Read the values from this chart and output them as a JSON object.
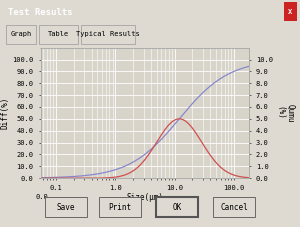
{
  "title": "Test Results",
  "tab_labels": [
    "Graph",
    "Table",
    "Typical Results"
  ],
  "xlabel": "Size(μm)",
  "ylabel_left": "Diff(%)",
  "ylabel_right": "Qumu\n(%)",
  "xtick_labels": [
    "0.0",
    "0.1",
    "1.0",
    "10.0",
    "100.0"
  ],
  "ytick_labels_left": [
    "0.0",
    "10.0",
    "20.0",
    "30.0",
    "40.0",
    "50.0",
    "60.0",
    "70.0",
    "80.0",
    "90.0",
    "100.0"
  ],
  "ytick_labels_right": [
    "0.0",
    "1.0",
    "2.0",
    "3.0",
    "4.0",
    "5.0",
    "6.0",
    "7.0",
    "8.0",
    "9.0",
    "10.0"
  ],
  "bg_window": "#dedad2",
  "bg_plot": "#d8d4ca",
  "grid_color": "#ffffff",
  "diff_color": "#d05050",
  "cumu_color": "#8888cc",
  "button_labels": [
    "Save",
    "Print",
    "OK",
    "Cancel"
  ],
  "title_bar_color": "#3355cc",
  "title_text_color": "#ffffff",
  "tab_bg": "#dedad2",
  "tick_fontsize": 5,
  "label_fontsize": 5.5
}
